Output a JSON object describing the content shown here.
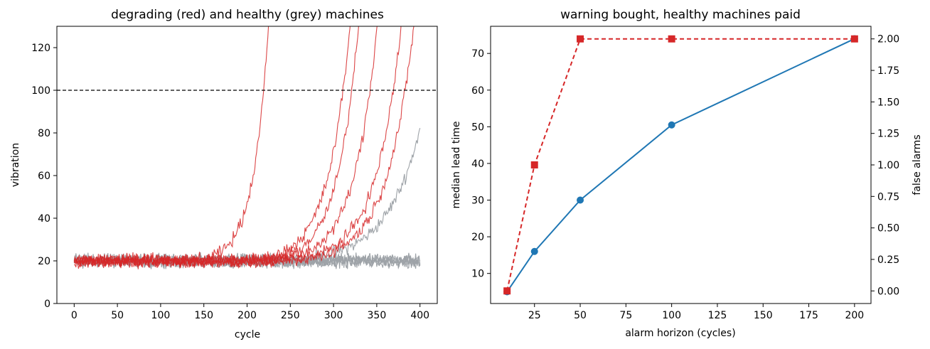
{
  "chart_data": [
    {
      "type": "line",
      "title": "degrading (red) and healthy (grey) machines",
      "xlabel": "cycle",
      "ylabel": "vibration",
      "xlim": [
        -20,
        420
      ],
      "ylim": [
        0,
        130
      ],
      "xticks": [
        0,
        50,
        100,
        150,
        200,
        250,
        300,
        350,
        400
      ],
      "yticks": [
        0,
        20,
        40,
        60,
        80,
        100,
        120
      ],
      "grid": false,
      "threshold": {
        "y": 100,
        "style": "dashed",
        "color": "#000000"
      },
      "colors": {
        "degrading": "#d62728",
        "healthy": "#9ea3a8"
      },
      "degrading_series": [
        {
          "onset": 140,
          "cross_100": 219
        },
        {
          "onset": 200,
          "cross_100": 311
        },
        {
          "onset": 215,
          "cross_100": 321
        },
        {
          "onset": 225,
          "cross_100": 342
        },
        {
          "onset": 240,
          "cross_100": 369
        },
        {
          "onset": 245,
          "cross_100": 383
        }
      ],
      "healthy_series": [
        {
          "baseline": 20,
          "end_value": 82,
          "onset": 240
        },
        {
          "baseline": 20,
          "end_value": 20
        },
        {
          "baseline": 20,
          "end_value": 20
        },
        {
          "baseline": 20,
          "end_value": 20
        },
        {
          "baseline": 20,
          "end_value": 20
        },
        {
          "baseline": 20,
          "end_value": 20
        }
      ],
      "baseline_noise": 2.5
    },
    {
      "type": "line",
      "title": "warning bought, healthy machines paid",
      "xlabel": "alarm horizon (cycles)",
      "ylabel": "median lead time",
      "ylabel_right": "false alarms",
      "xlim": [
        1,
        209
      ],
      "ylim": [
        1.8,
        77.4
      ],
      "ylim_right": [
        -0.1,
        2.1
      ],
      "xticks": [
        25,
        50,
        75,
        100,
        125,
        150,
        175,
        200
      ],
      "yticks": [
        10,
        20,
        30,
        40,
        50,
        60,
        70
      ],
      "yticks_right": [
        "0.00",
        "0.25",
        "0.50",
        "0.75",
        "1.00",
        "1.25",
        "1.50",
        "1.75",
        "2.00"
      ],
      "series": [
        {
          "name": "median lead time",
          "axis": "left",
          "color": "#1f77b4",
          "marker": "circle",
          "style": "solid",
          "x": [
            10,
            25,
            50,
            100,
            200
          ],
          "values": [
            5,
            16,
            30,
            50.5,
            74
          ]
        },
        {
          "name": "false alarms",
          "axis": "right",
          "color": "#d62728",
          "marker": "square",
          "style": "dashed",
          "x": [
            10,
            25,
            50,
            100,
            200
          ],
          "values": [
            0,
            1,
            2,
            2,
            2
          ]
        }
      ]
    }
  ]
}
